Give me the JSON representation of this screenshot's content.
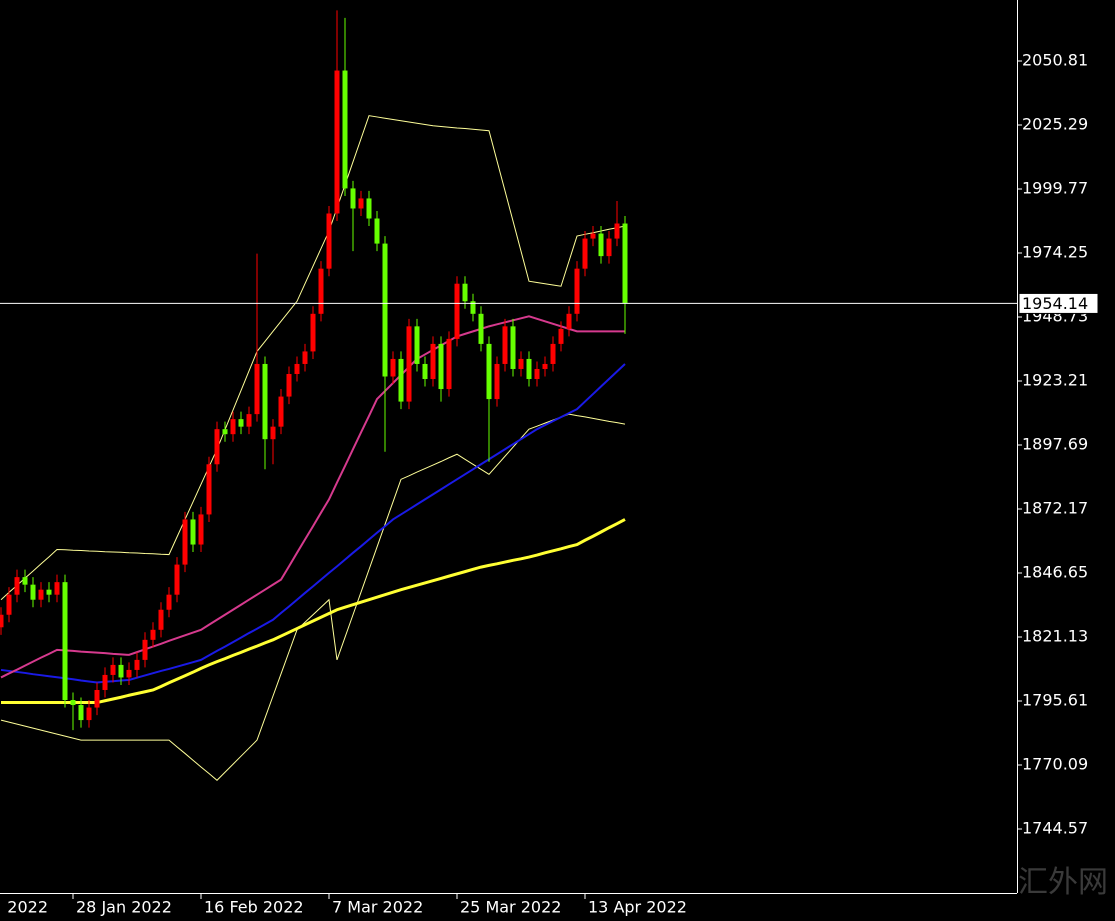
{
  "chart_data": {
    "type": "candlestick",
    "colors": {
      "up": "#ff0000",
      "down": "#66ff00"
    },
    "categories": [
      null,
      null,
      null,
      null,
      null,
      null,
      null,
      null,
      null,
      "28 Jan 2022",
      null,
      null,
      null,
      null,
      null,
      null,
      null,
      null,
      null,
      null,
      null,
      null,
      null,
      null,
      null,
      "16 Feb 2022",
      null,
      null,
      null,
      null,
      null,
      null,
      null,
      null,
      null,
      null,
      null,
      null,
      null,
      null,
      null,
      "7 Mar 2022",
      null,
      null,
      null,
      null,
      null,
      null,
      null,
      null,
      null,
      null,
      null,
      null,
      null,
      null,
      null,
      "25 Mar 2022",
      null,
      null,
      null,
      null,
      null,
      null,
      null,
      null,
      null,
      null,
      null,
      null,
      null,
      null,
      null,
      "13 Apr 2022",
      null,
      null,
      null,
      null,
      null
    ],
    "x_label_partial": "2022",
    "open": [
      1825,
      1830,
      1838,
      1845,
      1842,
      1836,
      1840,
      1838,
      1843,
      1796,
      1794,
      1788,
      1793,
      1800,
      1806,
      1810,
      1805,
      1808,
      1812,
      1820,
      1824,
      1832,
      1838,
      1850,
      1868,
      1858,
      1870,
      1890,
      1904,
      1902,
      1908,
      1905,
      1910,
      1930,
      1900,
      1905,
      1917,
      1926,
      1930,
      1935,
      1950,
      1968,
      1990,
      2047,
      2000,
      1992,
      1996,
      1988,
      1978,
      1925,
      1932,
      1915,
      1945,
      1930,
      1924,
      1938,
      1920,
      1940,
      1962,
      1955,
      1950,
      1938,
      1916,
      1930,
      1945,
      1928,
      1932,
      1924,
      1928,
      1930,
      1938,
      1944,
      1950,
      1968,
      1980,
      1982,
      1973,
      1980,
      1986
    ],
    "high": [
      1833,
      1841,
      1848,
      1848,
      1845,
      1843,
      1843,
      1846,
      1846,
      1799,
      1797,
      1796,
      1803,
      1809,
      1813,
      1813,
      1811,
      1815,
      1823,
      1827,
      1835,
      1841,
      1853,
      1871,
      1871,
      1873,
      1893,
      1907,
      1907,
      1911,
      1911,
      1913,
      1974,
      1933,
      1908,
      1920,
      1929,
      1933,
      1938,
      1953,
      1971,
      1993,
      2071,
      2068,
      2003,
      1999,
      1999,
      1991,
      1981,
      1935,
      1935,
      1948,
      1948,
      1933,
      1941,
      1941,
      1943,
      1965,
      1965,
      1958,
      1953,
      1941,
      1933,
      1948,
      1948,
      1935,
      1935,
      1931,
      1933,
      1941,
      1947,
      1953,
      1971,
      1983,
      1985,
      1985,
      1983,
      1995,
      1989
    ],
    "low": [
      1822,
      1827,
      1835,
      1839,
      1833,
      1833,
      1835,
      1835,
      1793,
      1784,
      1785,
      1785,
      1790,
      1797,
      1803,
      1802,
      1802,
      1805,
      1809,
      1817,
      1821,
      1829,
      1835,
      1847,
      1855,
      1855,
      1867,
      1887,
      1899,
      1899,
      1902,
      1902,
      1907,
      1888,
      1890,
      1902,
      1914,
      1923,
      1927,
      1932,
      1947,
      1965,
      1987,
      1997,
      1975,
      1989,
      1985,
      1975,
      1895,
      1922,
      1912,
      1912,
      1927,
      1921,
      1921,
      1915,
      1917,
      1937,
      1952,
      1947,
      1935,
      1891,
      1913,
      1927,
      1925,
      1925,
      1921,
      1921,
      1925,
      1927,
      1935,
      1941,
      1947,
      1965,
      1977,
      1970,
      1970,
      1977,
      1942
    ],
    "close": [
      1830,
      1838,
      1845,
      1842,
      1836,
      1840,
      1838,
      1843,
      1796,
      1794,
      1788,
      1793,
      1800,
      1806,
      1810,
      1805,
      1808,
      1812,
      1820,
      1824,
      1832,
      1838,
      1850,
      1868,
      1858,
      1870,
      1890,
      1904,
      1902,
      1908,
      1905,
      1910,
      1930,
      1900,
      1905,
      1917,
      1926,
      1930,
      1935,
      1950,
      1968,
      1990,
      2047,
      2000,
      1992,
      1996,
      1988,
      1978,
      1925,
      1932,
      1915,
      1945,
      1930,
      1924,
      1938,
      1920,
      1940,
      1962,
      1955,
      1950,
      1938,
      1916,
      1930,
      1945,
      1928,
      1932,
      1924,
      1928,
      1930,
      1938,
      1944,
      1950,
      1968,
      1980,
      1982,
      1973,
      1980,
      1986,
      1954.14
    ],
    "series": [
      {
        "color": "#ffff99",
        "width": 1,
        "values": [
          1836,
          1838.9,
          1841.7,
          1844.6,
          1847.4,
          1850.3,
          1853.1,
          1856,
          1855.9,
          1855.7,
          1855.6,
          1855.4,
          1855.3,
          1855.1,
          1855,
          1854.9,
          1854.7,
          1854.6,
          1854.4,
          1854.3,
          1854.1,
          1854,
          1861,
          1868,
          1875,
          1882,
          1889,
          1896,
          1903.8,
          1911.6,
          1919.4,
          1927.2,
          1935,
          1939,
          1943,
          1947,
          1951,
          1955,
          1962,
          1969,
          1976,
          1983,
          1992.2,
          2001.4,
          2010.6,
          2019.8,
          2029,
          2028.5,
          2028,
          2027.5,
          2027,
          2026.5,
          2026,
          2025.5,
          2025,
          2024.7,
          2024.4,
          2024.1,
          2023.9,
          2023.6,
          2023.3,
          2023,
          2011,
          1999,
          1987,
          1975,
          1963,
          1962.5,
          1962,
          1961.5,
          1961,
          1971,
          1981,
          1981.7,
          1982.3,
          1983,
          1983.7,
          1984.3,
          1985
        ]
      },
      {
        "color": "#ffff99",
        "width": 1,
        "values": [
          1788,
          1787.2,
          1786.4,
          1785.6,
          1784.8,
          1784,
          1783.2,
          1782.4,
          1781.6,
          1780.8,
          1780,
          1780,
          1780,
          1780,
          1780,
          1780,
          1780,
          1780,
          1780,
          1780,
          1780,
          1780,
          1777.3,
          1774.7,
          1772,
          1769.3,
          1766.7,
          1764,
          1767.2,
          1770.4,
          1773.6,
          1776.8,
          1780,
          1788.8,
          1797.6,
          1806.4,
          1815.2,
          1824,
          1827,
          1830,
          1833,
          1836,
          1812,
          1821,
          1830,
          1839,
          1848,
          1857,
          1866,
          1875,
          1884,
          1885.4,
          1886.9,
          1888.3,
          1889.7,
          1891.1,
          1892.6,
          1894,
          1892,
          1890,
          1888,
          1886,
          1889.6,
          1893.2,
          1896.8,
          1900.4,
          1904,
          1905.2,
          1906.4,
          1907.6,
          1908.8,
          1910,
          1909.4,
          1908.9,
          1908.3,
          1907.7,
          1907.1,
          1906.6,
          1906
        ]
      },
      {
        "color": "#ffff33",
        "width": 3,
        "values": [
          1795,
          1795,
          1795,
          1795,
          1795,
          1795,
          1795,
          1795,
          1795,
          1795,
          1795,
          1795,
          1795,
          1795.7,
          1796.4,
          1797.1,
          1797.9,
          1798.6,
          1799.3,
          1800,
          1801.4,
          1802.9,
          1804.3,
          1805.7,
          1807.1,
          1808.6,
          1810,
          1811.3,
          1812.5,
          1813.8,
          1815,
          1816.3,
          1817.5,
          1818.8,
          1820,
          1821.5,
          1823,
          1824.5,
          1826,
          1827.5,
          1829,
          1830.5,
          1832,
          1833,
          1834,
          1835,
          1836,
          1837,
          1838,
          1839,
          1840,
          1840.9,
          1841.8,
          1842.7,
          1843.6,
          1844.5,
          1845.4,
          1846.3,
          1847.2,
          1848.1,
          1849,
          1849.7,
          1850.3,
          1851,
          1851.7,
          1852.3,
          1853,
          1853.8,
          1854.7,
          1855.5,
          1856.3,
          1857.2,
          1858,
          1859.7,
          1861.3,
          1863,
          1864.7,
          1866.3,
          1868
        ]
      },
      {
        "color": "#1a1ae6",
        "width": 2,
        "values": [
          1808,
          1807.6,
          1807.2,
          1806.8,
          1806.3,
          1805.9,
          1805.5,
          1805.1,
          1804.7,
          1804.3,
          1803.8,
          1803.4,
          1803,
          1803.3,
          1803.5,
          1803.8,
          1804,
          1804.9,
          1805.8,
          1806.7,
          1807.6,
          1808.4,
          1809.3,
          1810.2,
          1811.1,
          1812,
          1813.8,
          1815.6,
          1817.3,
          1819.1,
          1820.9,
          1822.7,
          1824.4,
          1826.2,
          1828,
          1830.7,
          1833.3,
          1836,
          1838.7,
          1841.3,
          1844,
          1846.7,
          1849.3,
          1852,
          1854.7,
          1857.3,
          1860,
          1862.7,
          1865.3,
          1868,
          1870,
          1872,
          1874,
          1876,
          1878,
          1880,
          1882,
          1884,
          1886,
          1888,
          1890,
          1892,
          1894,
          1896,
          1898,
          1900,
          1902,
          1904,
          1905.6,
          1907.2,
          1908.8,
          1910.4,
          1912,
          1915,
          1918,
          1921,
          1924,
          1927,
          1930
        ]
      },
      {
        "color": "#d63a8e",
        "width": 2,
        "values": [
          1805,
          1806.6,
          1808.1,
          1809.7,
          1811.3,
          1812.9,
          1814.4,
          1816,
          1815.8,
          1815.6,
          1815.3,
          1815.1,
          1814.9,
          1814.7,
          1814.4,
          1814.2,
          1814,
          1815.1,
          1816.2,
          1817.3,
          1818.4,
          1819.6,
          1820.7,
          1821.8,
          1822.9,
          1824,
          1826,
          1828,
          1830,
          1832,
          1834,
          1836,
          1838,
          1840,
          1842,
          1844,
          1849.3,
          1854.7,
          1860,
          1865.3,
          1870.7,
          1876,
          1882.7,
          1889.3,
          1896,
          1902.7,
          1909.3,
          1916,
          1919.2,
          1922.4,
          1925.6,
          1928.8,
          1932,
          1933.8,
          1935.6,
          1937.4,
          1939.2,
          1941,
          1942,
          1943,
          1944,
          1945,
          1945.8,
          1946.6,
          1947.4,
          1948.2,
          1949,
          1948,
          1947,
          1946,
          1945,
          1944,
          1943,
          1943,
          1943,
          1943,
          1943,
          1943,
          1943
        ]
      }
    ],
    "ylim": [
      1719.05,
      2075.13
    ],
    "yticks": [
      2050.81,
      2025.29,
      1999.77,
      1974.25,
      1948.73,
      1923.21,
      1897.69,
      1872.17,
      1846.65,
      1821.13,
      1795.61,
      1770.09,
      1744.57
    ],
    "current_price": 1954.14,
    "watermark": "汇外网"
  }
}
